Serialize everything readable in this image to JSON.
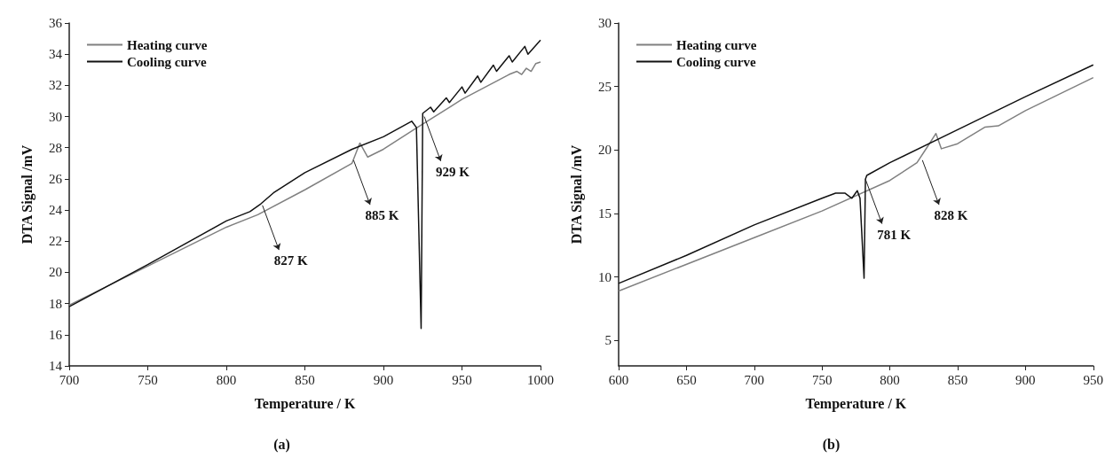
{
  "chart_data": [
    {
      "type": "line",
      "title": "(a)",
      "xlabel": "Temperature / K",
      "ylabel": "DTA Signal /mV",
      "xlim": [
        700,
        1000
      ],
      "xticks": [
        700,
        750,
        800,
        850,
        900,
        950,
        1000
      ],
      "ylim": [
        14,
        36
      ],
      "yticks": [
        14,
        16,
        18,
        20,
        22,
        24,
        26,
        28,
        30,
        32,
        34,
        36
      ],
      "legend": "top left",
      "grid": false,
      "series": [
        {
          "name": "Heating curve",
          "color": "#808080",
          "x": [
            700,
            750,
            800,
            820,
            850,
            880,
            885,
            890,
            900,
            920,
            950,
            980,
            985,
            988,
            991,
            994,
            997,
            1000
          ],
          "values": [
            17.9,
            20.4,
            22.9,
            23.7,
            25.3,
            27.0,
            28.3,
            27.4,
            27.9,
            29.2,
            31.1,
            32.7,
            32.9,
            32.7,
            33.1,
            32.9,
            33.4,
            33.5
          ]
        },
        {
          "name": "Cooling curve",
          "color": "#111111",
          "x": [
            700,
            750,
            800,
            815,
            822,
            830,
            850,
            880,
            900,
            918,
            921,
            924,
            925,
            930,
            932,
            940,
            942,
            950,
            952,
            960,
            962,
            970,
            972,
            980,
            982,
            990,
            992,
            1000
          ],
          "values": [
            17.8,
            20.5,
            23.3,
            23.9,
            24.4,
            25.1,
            26.4,
            27.9,
            28.7,
            29.7,
            29.3,
            16.4,
            30.2,
            30.6,
            30.3,
            31.2,
            30.9,
            31.9,
            31.5,
            32.6,
            32.2,
            33.3,
            32.9,
            33.9,
            33.5,
            34.5,
            34.0,
            34.9
          ]
        }
      ],
      "annotations": [
        {
          "text": "827 K",
          "x": 823,
          "y": 24.3
        },
        {
          "text": "885 K",
          "x": 881,
          "y": 27.2
        },
        {
          "text": "929 K",
          "x": 926,
          "y": 30.0
        }
      ]
    },
    {
      "type": "line",
      "title": "(b)",
      "xlabel": "Temperature / K",
      "ylabel": "DTA Signal /mV",
      "xlim": [
        600,
        950
      ],
      "xticks": [
        600,
        650,
        700,
        750,
        800,
        850,
        900,
        950
      ],
      "ylim": [
        3,
        30
      ],
      "yticks": [
        5,
        10,
        15,
        20,
        25,
        30
      ],
      "legend": "top left",
      "grid": false,
      "series": [
        {
          "name": "Heating curve",
          "color": "#808080",
          "x": [
            600,
            700,
            750,
            800,
            820,
            828,
            834,
            838,
            850,
            870,
            880,
            900,
            950
          ],
          "values": [
            8.9,
            13.1,
            15.2,
            17.6,
            19.0,
            20.3,
            21.3,
            20.1,
            20.5,
            21.8,
            21.9,
            23.1,
            25.7
          ]
        },
        {
          "name": "Cooling curve",
          "color": "#111111",
          "x": [
            600,
            650,
            700,
            750,
            760,
            767,
            772,
            776,
            778,
            781,
            782,
            783,
            800,
            850,
            900,
            950
          ],
          "values": [
            9.5,
            11.7,
            14.1,
            16.2,
            16.6,
            16.6,
            16.2,
            16.8,
            16.2,
            9.9,
            17.7,
            18.0,
            19.0,
            21.6,
            24.2,
            26.7
          ]
        }
      ],
      "annotations": [
        {
          "text": "781 K",
          "x": 782,
          "y": 17.7
        },
        {
          "text": "828 K",
          "x": 824,
          "y": 19.2
        }
      ]
    }
  ]
}
